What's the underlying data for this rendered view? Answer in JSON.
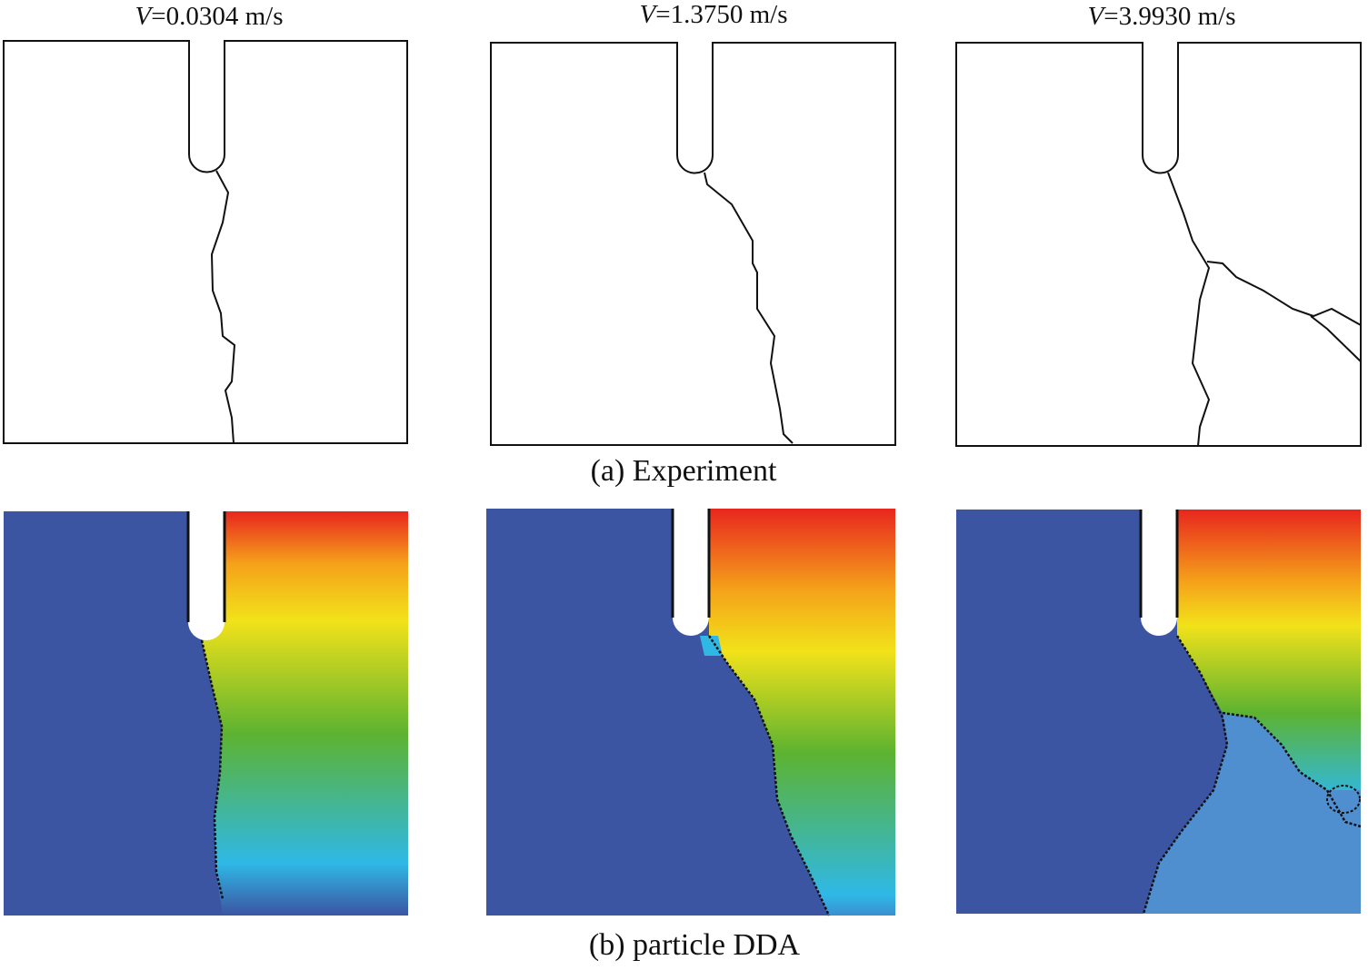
{
  "panels": [
    {
      "velocity_symbol": "V",
      "velocity_value": "=0.0304 m/s"
    },
    {
      "velocity_symbol": "V",
      "velocity_value": "=1.3750 m/s"
    },
    {
      "velocity_symbol": "V",
      "velocity_value": "=3.9930 m/s"
    }
  ],
  "captions": {
    "experiment": "(a) Experiment",
    "simulation": "(b) particle DDA"
  },
  "colors": {
    "fixed_block": "#3b55a2",
    "top": "#e8261e",
    "orange": "#f5a21a",
    "yellow": "#f2e21a",
    "green": "#5db330",
    "cyan": "#2fb8e6",
    "bottom": "#3b55a2",
    "crack": "#111111",
    "branch_region": "#4f8fd0"
  }
}
